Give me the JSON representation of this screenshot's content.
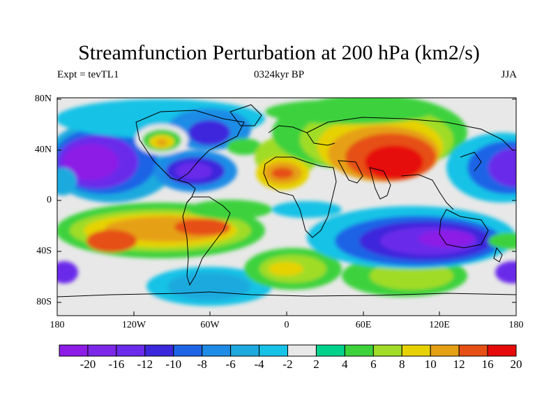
{
  "header": {
    "title": "Streamfunction Perturbation at 200 hPa (km2/s)",
    "left": "Expt = tevTL1",
    "center": "0324kyr BP",
    "right": "JJA"
  },
  "axes": {
    "lat_ticks": [
      "80N",
      "40N",
      "0",
      "40S",
      "80S"
    ],
    "lon_ticks": [
      "180",
      "120W",
      "60W",
      "0",
      "60E",
      "120E",
      "180"
    ]
  },
  "colorbar": {
    "labels": [
      "-20",
      "-16",
      "-12",
      "-10",
      "-8",
      "-6",
      "-4",
      "-2",
      "2",
      "4",
      "6",
      "8",
      "10",
      "12",
      "16",
      "20"
    ],
    "colors": [
      "#8c1ce6",
      "#7d28e8",
      "#6a2cea",
      "#3c28dc",
      "#1e64e6",
      "#1e8ce6",
      "#1eaade",
      "#16c2e6",
      "#e8e8e8",
      "#00d28c",
      "#3cd23c",
      "#a0dc28",
      "#e6d200",
      "#e6a014",
      "#e65014",
      "#e60a0a"
    ]
  }
}
